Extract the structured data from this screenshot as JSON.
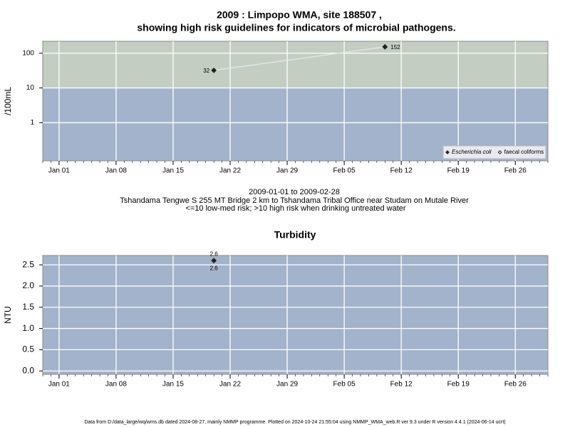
{
  "chart_data": [
    {
      "type": "line",
      "title": [
        "2009 : Limpopo WMA, site 188507 ,",
        "showing high risk guidelines for indicators of microbial pathogens."
      ],
      "notes": [
        "2009-01-01 to 2009-02-28",
        "Tshandama Tengwe S 255 MT Bridge 2 km to Tshandama Tribal Office near Studam on Mutale River",
        "<=10 low-med risk; >10 high risk when drinking untreated water"
      ],
      "ylabel": "/100mL",
      "log_y": true,
      "x": [
        "2009-01-20",
        "2009-02-10"
      ],
      "series": [
        {
          "name": "Escherichia coli",
          "color": "#222222",
          "marker": "filled",
          "font_style": "italic",
          "line_color": "#e4e4e4",
          "values": [
            32,
            152
          ]
        },
        {
          "name": "faecal coliforms",
          "color": "#222222",
          "marker": "open",
          "font_style": "normal",
          "line_color": "#e4e4e4",
          "values": [
            null,
            null
          ]
        }
      ],
      "xlim": [
        "2008-12-30",
        "2009-03-02"
      ],
      "xticks": [
        {
          "value": "2009-01-01",
          "label": "Jan 01"
        },
        {
          "value": "2009-01-08",
          "label": "Jan 08"
        },
        {
          "value": "2009-01-15",
          "label": "Jan 15"
        },
        {
          "value": "2009-01-22",
          "label": "Jan 22"
        },
        {
          "value": "2009-01-29",
          "label": "Jan 29"
        },
        {
          "value": "2009-02-05",
          "label": "Feb 05"
        },
        {
          "value": "2009-02-12",
          "label": "Feb 12"
        },
        {
          "value": "2009-02-19",
          "label": "Feb 19"
        },
        {
          "value": "2009-02-26",
          "label": "Feb 26"
        }
      ],
      "ylim": [
        0.08,
        220
      ],
      "yticks": [
        1,
        10,
        100
      ],
      "guideline": 10,
      "band_colors": {
        "below": "#a3b3cb",
        "above": "#c3cdc2"
      },
      "grid": true,
      "legend": "bottom-right",
      "label_style": "side"
    },
    {
      "type": "line",
      "title": [
        "Turbidity"
      ],
      "ylabel": "NTU",
      "log_y": false,
      "x": [
        "2009-01-20"
      ],
      "series": [
        {
          "name": "Turbidity",
          "color": "#222222",
          "marker": "filled",
          "line_color": "#e4e4e4",
          "values": [
            2.6
          ]
        }
      ],
      "xlim": [
        "2008-12-30",
        "2009-03-02"
      ],
      "xticks": [
        {
          "value": "2009-01-01",
          "label": "Jan 01"
        },
        {
          "value": "2009-01-08",
          "label": "Jan 08"
        },
        {
          "value": "2009-01-15",
          "label": "Jan 15"
        },
        {
          "value": "2009-01-22",
          "label": "Jan 22"
        },
        {
          "value": "2009-01-29",
          "label": "Jan 29"
        },
        {
          "value": "2009-02-05",
          "label": "Feb 05"
        },
        {
          "value": "2009-02-12",
          "label": "Feb 12"
        },
        {
          "value": "2009-02-19",
          "label": "Feb 19"
        },
        {
          "value": "2009-02-26",
          "label": "Feb 26"
        }
      ],
      "ylim": [
        -0.08,
        2.72
      ],
      "yticks": [
        {
          "value": 0,
          "label": "0.0"
        },
        0.5,
        {
          "value": 1,
          "label": "1.0"
        },
        1.5,
        {
          "value": 2,
          "label": "2.0"
        },
        2.5
      ],
      "band_colors": {
        "below": "#a3b3cb"
      },
      "grid": true,
      "legend": "none",
      "label_style": "above-below"
    }
  ],
  "footer": "Data from D:/data_large/wq/wms.db dated 2024-08-27, mainly NMMP programme. Plotted on 2024-10-24 21:55:04 using NMMP_WMA_web.R ver 9.3 under R version 4.4.1 (2024-06-14 ucrt)"
}
